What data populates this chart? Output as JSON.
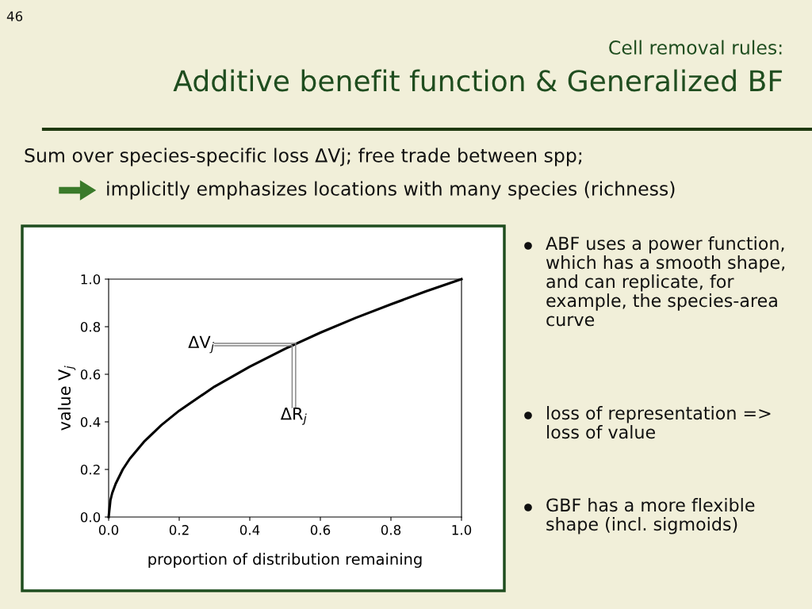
{
  "chart_data": {
    "type": "line",
    "title": "Additive benefit function & Generalized BF",
    "subtitle": "Cell removal rules:",
    "xlabel": "proportion of distribution remaining",
    "ylabel": "value V$_{j}$",
    "xlim": [
      0,
      1
    ],
    "ylim": [
      0,
      1
    ],
    "xticks": [
      {
        "value": 0,
        "label": "0.0"
      },
      {
        "value": 0.2,
        "label": "0.2"
      },
      {
        "value": 0.4,
        "label": "0.4"
      },
      {
        "value": 0.6,
        "label": "0.6"
      },
      {
        "value": 0.8,
        "label": "0.8"
      },
      {
        "value": 1,
        "label": "1.0"
      }
    ],
    "yticks": [
      {
        "value": 0,
        "label": "0.0"
      },
      {
        "value": 0.2,
        "label": "0.2"
      },
      {
        "value": 0.4,
        "label": "0.4"
      },
      {
        "value": 0.6,
        "label": "0.6"
      },
      {
        "value": 0.8,
        "label": "0.8"
      },
      {
        "value": 1,
        "label": "1.0"
      }
    ],
    "grid": false,
    "legend": false,
    "marker": "none",
    "line_style": "solid",
    "series": [
      {
        "color": "#000000",
        "x": [
          0,
          0.005,
          0.01,
          0.02,
          0.04,
          0.06,
          0.1,
          0.15,
          0.2,
          0.3,
          0.4,
          0.5,
          0.6,
          0.7,
          0.8,
          0.9,
          1.0
        ],
        "values": [
          0,
          0.07,
          0.1,
          0.14,
          0.2,
          0.245,
          0.316,
          0.387,
          0.447,
          0.548,
          0.632,
          0.707,
          0.775,
          0.837,
          0.894,
          0.949,
          1.0
        ]
      },
      {
        "color": "#808080",
        "x": [
          0.3,
          0.52
        ],
        "values": [
          0.72,
          0.72
        ]
      },
      {
        "color": "#808080",
        "x": [
          0.3,
          0.53
        ],
        "values": [
          0.73,
          0.73
        ]
      },
      {
        "color": "#808080",
        "x": [
          0.52,
          0.52
        ],
        "values": [
          0.72,
          0.46
        ]
      },
      {
        "color": "#808080",
        "x": [
          0.53,
          0.53
        ],
        "values": [
          0.73,
          0.46
        ]
      }
    ],
    "annotations": [
      {
        "text": "ΔV$_{j}$",
        "x": 0.3,
        "y": 0.725
      },
      {
        "text": "ΔR$_{j}$",
        "x": 0.525,
        "y": 0.46
      },
      "46",
      "Sum over species-specific loss ΔVj; free trade between spp;",
      "implicitly emphasizes locations with many species (richness)",
      "ABF uses a power function, which has a smooth shape, and can replicate, for example, the species-area curve",
      "loss of representation => loss of value",
      "GBF has a more flexible shape (incl. sigmoids)"
    ]
  }
}
